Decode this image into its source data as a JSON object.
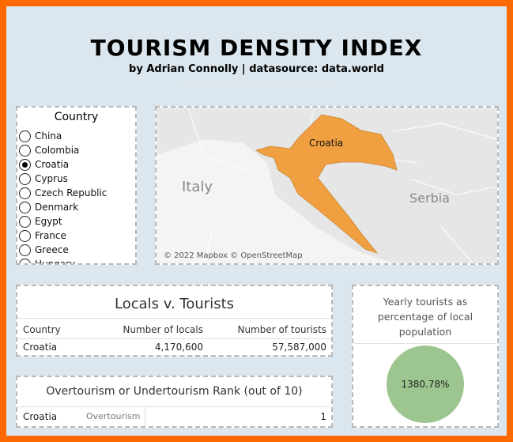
{
  "header": {
    "title": "TOURISM DENSITY INDEX",
    "subtitle": "by Adrian Connolly | datasource: data.world"
  },
  "filter": {
    "title": "Country",
    "options": [
      "China",
      "Colombia",
      "Croatia",
      "Cyprus",
      "Czech Republic",
      "Denmark",
      "Egypt",
      "France",
      "Greece",
      "Hungary"
    ],
    "selected_index": 2
  },
  "map": {
    "highlight_label": "Croatia",
    "labels": [
      "Italy",
      "Serbia"
    ],
    "attribution": "© 2022 Mapbox © OpenStreetMap"
  },
  "table": {
    "title": "Locals v. Tourists",
    "columns": [
      "Country",
      "Number of locals",
      "Number of tourists"
    ],
    "rows": [
      [
        "Croatia",
        "4,170,600",
        "57,587,000"
      ]
    ]
  },
  "pie": {
    "title": "Yearly tourists as percentage of local population",
    "label": "1380.78%"
  },
  "rank": {
    "title": "Overtourism or Undertourism Rank (out of 10)",
    "rows": [
      [
        "Croatia",
        "Overtourism",
        "1"
      ]
    ]
  }
}
